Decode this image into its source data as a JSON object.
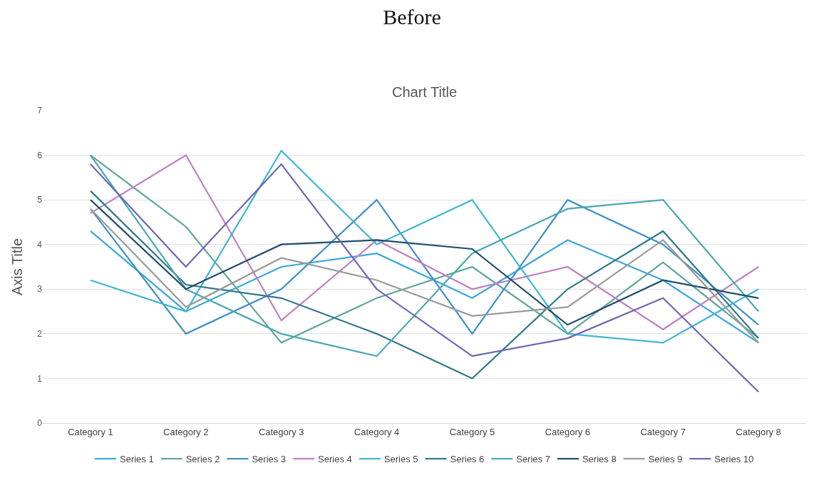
{
  "chart_data": {
    "type": "line",
    "title": "Before",
    "subtitle": "Chart Title",
    "ylabel": "Axis Title",
    "categories": [
      "Category 1",
      "Category 2",
      "Category 3",
      "Category 4",
      "Category 5",
      "Category 6",
      "Category 7",
      "Category 8"
    ],
    "series": [
      {
        "name": "Series 1",
        "color": "#3aa6dd",
        "values": [
          4.3,
          2.5,
          3.5,
          3.8,
          2.8,
          4.1,
          3.2,
          1.8
        ]
      },
      {
        "name": "Series 2",
        "color": "#5fa69a",
        "values": [
          6.0,
          4.4,
          1.8,
          2.8,
          3.5,
          2.0,
          3.6,
          1.9
        ]
      },
      {
        "name": "Series 3",
        "color": "#3d8fc6",
        "values": [
          4.8,
          2.0,
          3.0,
          5.0,
          2.0,
          5.0,
          4.0,
          2.2
        ]
      },
      {
        "name": "Series 4",
        "color": "#c17fc2",
        "values": [
          4.7,
          6.0,
          2.3,
          4.1,
          3.0,
          3.5,
          2.1,
          3.5
        ]
      },
      {
        "name": "Series 5",
        "color": "#41b6d1",
        "values": [
          3.2,
          2.5,
          6.1,
          4.0,
          5.0,
          2.0,
          1.8,
          3.0
        ]
      },
      {
        "name": "Series 6",
        "color": "#2d7a8a",
        "values": [
          5.2,
          3.1,
          2.8,
          2.0,
          1.0,
          3.0,
          4.3,
          1.9
        ]
      },
      {
        "name": "Series 7",
        "color": "#4aa8b0",
        "values": [
          6.0,
          3.0,
          2.0,
          1.5,
          3.8,
          4.8,
          5.0,
          2.5
        ]
      },
      {
        "name": "Series 8",
        "color": "#1f4e6b",
        "values": [
          5.0,
          3.0,
          4.0,
          4.1,
          3.9,
          2.2,
          3.2,
          2.8
        ]
      },
      {
        "name": "Series 9",
        "color": "#9a9a9a",
        "values": [
          4.8,
          2.6,
          3.7,
          3.2,
          2.4,
          2.6,
          4.1,
          1.8
        ]
      },
      {
        "name": "Series 10",
        "color": "#6b67b3",
        "values": [
          5.8,
          3.5,
          5.8,
          3.0,
          1.5,
          1.9,
          2.8,
          0.7
        ]
      }
    ],
    "ylim": [
      0,
      7
    ],
    "yticks": [
      0,
      1,
      2,
      3,
      4,
      5,
      6,
      7
    ],
    "grid": "y",
    "legend": "bottom",
    "marker": "none",
    "line_style": "solid"
  }
}
